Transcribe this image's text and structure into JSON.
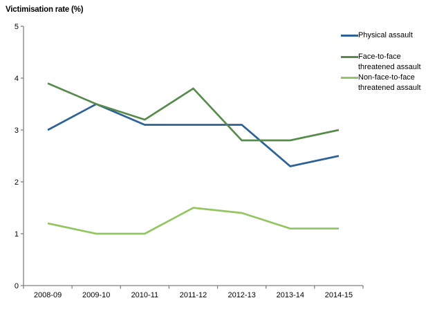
{
  "chart_data": {
    "type": "line",
    "title": "Victimisation rate (%)",
    "ylabel": "Victimisation rate (%)",
    "xlabel": "",
    "categories": [
      "2008-09",
      "2009-10",
      "2010-11",
      "2011-12",
      "2012-13",
      "2013-14",
      "2014-15"
    ],
    "series": [
      {
        "name": "Physical assault",
        "legend_lines": [
          "Physical assault"
        ],
        "color": "#2E6296",
        "values": [
          3.0,
          3.5,
          3.1,
          3.1,
          3.1,
          2.3,
          2.5
        ]
      },
      {
        "name": "Face-to-face threatened assault",
        "legend_lines": [
          "Face-to-face",
          "threatened assault"
        ],
        "color": "#578B4C",
        "values": [
          3.9,
          3.5,
          3.2,
          3.8,
          2.8,
          2.8,
          3.0
        ]
      },
      {
        "name": "Non-face-to-face threatened assault",
        "legend_lines": [
          "Non-face-to-face",
          "threatened assault"
        ],
        "color": "#93C662",
        "values": [
          1.2,
          1.0,
          1.0,
          1.5,
          1.4,
          1.1,
          1.1
        ]
      }
    ],
    "ylim": [
      0,
      5
    ],
    "yticks": [
      0,
      1,
      2,
      3,
      4,
      5
    ],
    "grid": false,
    "legend_position": "top-right",
    "axis_color": "#808080",
    "tick_label_color": "#000000"
  }
}
